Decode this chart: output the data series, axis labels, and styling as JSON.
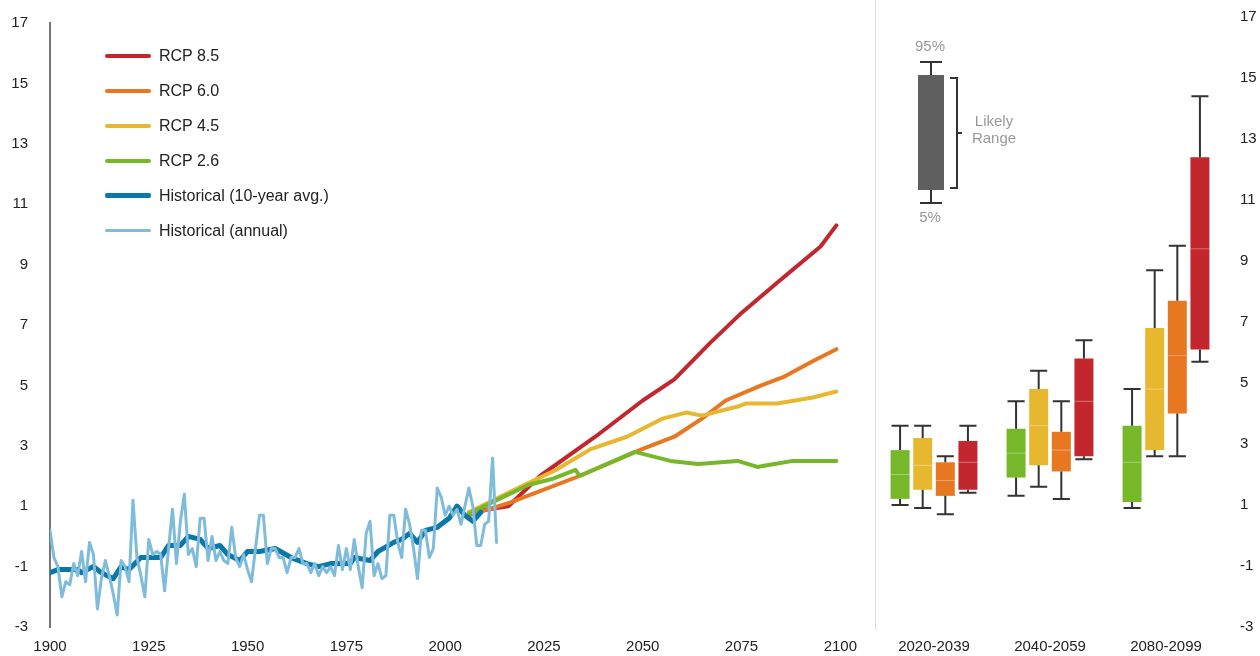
{
  "chart_data": [
    {
      "type": "line",
      "xlim": [
        1900,
        2100
      ],
      "xticks": [
        1900,
        1925,
        1950,
        1975,
        2000,
        2025,
        2050,
        2075,
        2100
      ],
      "ylim": [
        -3,
        17
      ],
      "yticks": [
        -3,
        -1,
        1,
        3,
        5,
        7,
        9,
        11,
        13,
        15,
        17
      ],
      "grid": false,
      "legend": "top left",
      "marker": "none",
      "series": [
        {
          "name": "RCP 8.5",
          "color": "#c1272d",
          "x": [
            2006,
            2016,
            2024,
            2038,
            2050,
            2058,
            2067,
            2075,
            2084,
            2095,
            2099
          ],
          "values": [
            0.8,
            1.0,
            2.0,
            3.3,
            4.5,
            5.2,
            6.4,
            7.4,
            8.4,
            9.6,
            10.3
          ]
        },
        {
          "name": "RCP 6.0",
          "color": "#e87722",
          "x": [
            2006,
            2016,
            2022,
            2034,
            2050,
            2058,
            2065,
            2071,
            2080,
            2086,
            2093,
            2099
          ],
          "values": [
            0.7,
            1.1,
            1.4,
            2.0,
            2.9,
            3.3,
            3.9,
            4.5,
            5.0,
            5.3,
            5.8,
            6.2
          ]
        },
        {
          "name": "RCP 4.5",
          "color": "#e8b730",
          "x": [
            2006,
            2020,
            2028,
            2037,
            2046,
            2055,
            2061,
            2065,
            2074,
            2076,
            2084,
            2093,
            2099
          ],
          "values": [
            0.8,
            1.7,
            2.2,
            2.9,
            3.3,
            3.9,
            4.1,
            4.0,
            4.3,
            4.4,
            4.4,
            4.6,
            4.8
          ]
        },
        {
          "name": "RCP 2.6",
          "color": "#76b82a",
          "x": [
            2006,
            2013,
            2021,
            2027,
            2033,
            2034,
            2041,
            2048,
            2057,
            2064,
            2074,
            2079,
            2088,
            2099
          ],
          "values": [
            0.75,
            1.2,
            1.7,
            1.9,
            2.2,
            2.0,
            2.4,
            2.8,
            2.5,
            2.4,
            2.5,
            2.3,
            2.5,
            2.5
          ]
        },
        {
          "name": "Historical (10-year avg.)",
          "color": "#0a77a8",
          "x": [
            1900,
            1902,
            1905,
            1907,
            1908,
            1911,
            1913,
            1916,
            1918,
            1920,
            1923,
            1928,
            1930,
            1933,
            1935,
            1938,
            1940,
            1943,
            1945,
            1948,
            1950,
            1953,
            1957,
            1961,
            1965,
            1968,
            1971,
            1973,
            1976,
            1977,
            1981,
            1983,
            1987,
            1989,
            1991,
            1993,
            1995,
            1998,
            2000,
            2001,
            2003,
            2005,
            2007,
            2009
          ],
          "values": [
            -1.2,
            -1.1,
            -1.1,
            -1.1,
            -1.2,
            -1.0,
            -1.2,
            -1.4,
            -1.0,
            -1.1,
            -0.7,
            -0.7,
            -0.3,
            -0.3,
            0.0,
            -0.1,
            -0.4,
            -0.3,
            -0.6,
            -0.8,
            -0.5,
            -0.5,
            -0.4,
            -0.7,
            -0.9,
            -1.0,
            -0.9,
            -0.9,
            -0.9,
            -0.7,
            -0.8,
            -0.5,
            -0.2,
            -0.1,
            0.1,
            -0.2,
            0.2,
            0.3,
            0.5,
            0.6,
            1.0,
            0.7,
            0.5,
            0.8
          ]
        },
        {
          "name": "Historical (annual)",
          "color": "#7fbcdc",
          "x": [
            1900,
            1901,
            1902,
            1903,
            1904,
            1905,
            1906,
            1907,
            1908,
            1909,
            1910,
            1911,
            1912,
            1913,
            1914,
            1915,
            1916,
            1917,
            1918,
            1919,
            1920,
            1921,
            1922,
            1923,
            1924,
            1925,
            1926,
            1927,
            1928,
            1929,
            1930,
            1931,
            1932,
            1933,
            1934,
            1935,
            1936,
            1937,
            1938,
            1939,
            1940,
            1941,
            1942,
            1943,
            1944,
            1945,
            1946,
            1947,
            1948,
            1949,
            1950,
            1951,
            1952,
            1953,
            1954,
            1955,
            1956,
            1957,
            1958,
            1959,
            1960,
            1961,
            1962,
            1963,
            1964,
            1965,
            1966,
            1967,
            1968,
            1969,
            1970,
            1971,
            1972,
            1973,
            1974,
            1975,
            1976,
            1977,
            1978,
            1979,
            1980,
            1981,
            1982,
            1983,
            1984,
            1985,
            1986,
            1987,
            1988,
            1989,
            1990,
            1991,
            1992,
            1993,
            1994,
            1995,
            1996,
            1997,
            1998,
            1999,
            2000,
            2001,
            2002,
            2003,
            2004,
            2005,
            2006,
            2007,
            2008,
            2009,
            2010,
            2011,
            2012,
            2013
          ],
          "values": [
            0.2,
            -0.7,
            -1.0,
            -2.0,
            -1.5,
            -1.6,
            -0.9,
            -1.3,
            -0.5,
            -1.5,
            -0.2,
            -0.6,
            -2.4,
            -1.4,
            -0.8,
            -1.3,
            -1.9,
            -2.6,
            -0.8,
            -1.0,
            -1.5,
            1.2,
            -0.7,
            -1.3,
            -2.0,
            -0.1,
            -0.6,
            -0.5,
            -0.6,
            -1.8,
            -0.4,
            0.9,
            -0.9,
            0.5,
            1.4,
            -0.6,
            -0.4,
            -1.0,
            0.6,
            0.6,
            -0.8,
            0.0,
            -0.8,
            -0.5,
            -0.8,
            -0.9,
            0.3,
            -0.7,
            -1.0,
            -0.6,
            -1.1,
            -1.5,
            -0.4,
            0.7,
            0.7,
            -0.9,
            -0.4,
            -0.4,
            -0.7,
            -0.7,
            -1.2,
            -0.7,
            -0.7,
            -0.4,
            -0.9,
            -0.9,
            -1.2,
            -0.9,
            -1.3,
            -1.0,
            -1.2,
            -1.0,
            -1.3,
            -0.3,
            -1.1,
            -0.4,
            -1.1,
            -0.1,
            -1.0,
            -1.7,
            0.1,
            0.5,
            -1.3,
            -0.9,
            -1.4,
            -1.3,
            0.7,
            0.7,
            -0.2,
            -0.7,
            0.9,
            0.4,
            -0.4,
            -1.4,
            0.2,
            0.2,
            -0.7,
            -0.4,
            1.6,
            1.3,
            0.7,
            1.0,
            0.7,
            0.9,
            0.4,
            1.0,
            1.6,
            1.0,
            -0.3,
            -0.3,
            0.4,
            0.5,
            2.6,
            -0.2
          ]
        }
      ]
    },
    {
      "type": "box",
      "categories": [
        "2020-2039",
        "2040-2059",
        "2080-2099"
      ],
      "ylim": [
        -3,
        17
      ],
      "yticks": [
        -3,
        -1,
        1,
        3,
        5,
        7,
        9,
        11,
        13,
        15,
        17
      ],
      "grid": false,
      "annotations": [
        "95%",
        "5%",
        "Likely Range"
      ],
      "series": [
        {
          "color": "#76b82a",
          "boxes": [
            {
              "low": 1.0,
              "q1": 1.2,
              "median": 2.0,
              "q3": 2.8,
              "high": 3.6
            },
            {
              "low": 1.3,
              "q1": 1.9,
              "median": 2.7,
              "q3": 3.5,
              "high": 4.4
            },
            {
              "low": 0.9,
              "q1": 1.1,
              "median": 2.4,
              "q3": 3.6,
              "high": 4.8
            }
          ]
        },
        {
          "color": "#e8b730",
          "boxes": [
            {
              "low": 0.9,
              "q1": 1.5,
              "median": 2.3,
              "q3": 3.2,
              "high": 3.6
            },
            {
              "low": 1.6,
              "q1": 2.3,
              "median": 3.6,
              "q3": 4.8,
              "high": 5.4
            },
            {
              "low": 2.6,
              "q1": 2.8,
              "median": 4.8,
              "q3": 6.8,
              "high": 8.7
            }
          ]
        },
        {
          "color": "#e87722",
          "boxes": [
            {
              "low": 0.7,
              "q1": 1.3,
              "median": 1.8,
              "q3": 2.4,
              "high": 2.6
            },
            {
              "low": 1.2,
              "q1": 2.1,
              "median": 2.8,
              "q3": 3.4,
              "high": 4.4
            },
            {
              "low": 2.6,
              "q1": 4.0,
              "median": 5.9,
              "q3": 7.7,
              "high": 9.5
            }
          ]
        },
        {
          "color": "#c1272d",
          "boxes": [
            {
              "low": 1.4,
              "q1": 1.5,
              "median": 2.4,
              "q3": 3.1,
              "high": 3.6
            },
            {
              "low": 2.5,
              "q1": 2.6,
              "median": 4.4,
              "q3": 5.8,
              "high": 6.4
            },
            {
              "low": 5.7,
              "q1": 6.1,
              "median": 9.4,
              "q3": 12.4,
              "high": 14.4
            }
          ]
        }
      ]
    }
  ]
}
